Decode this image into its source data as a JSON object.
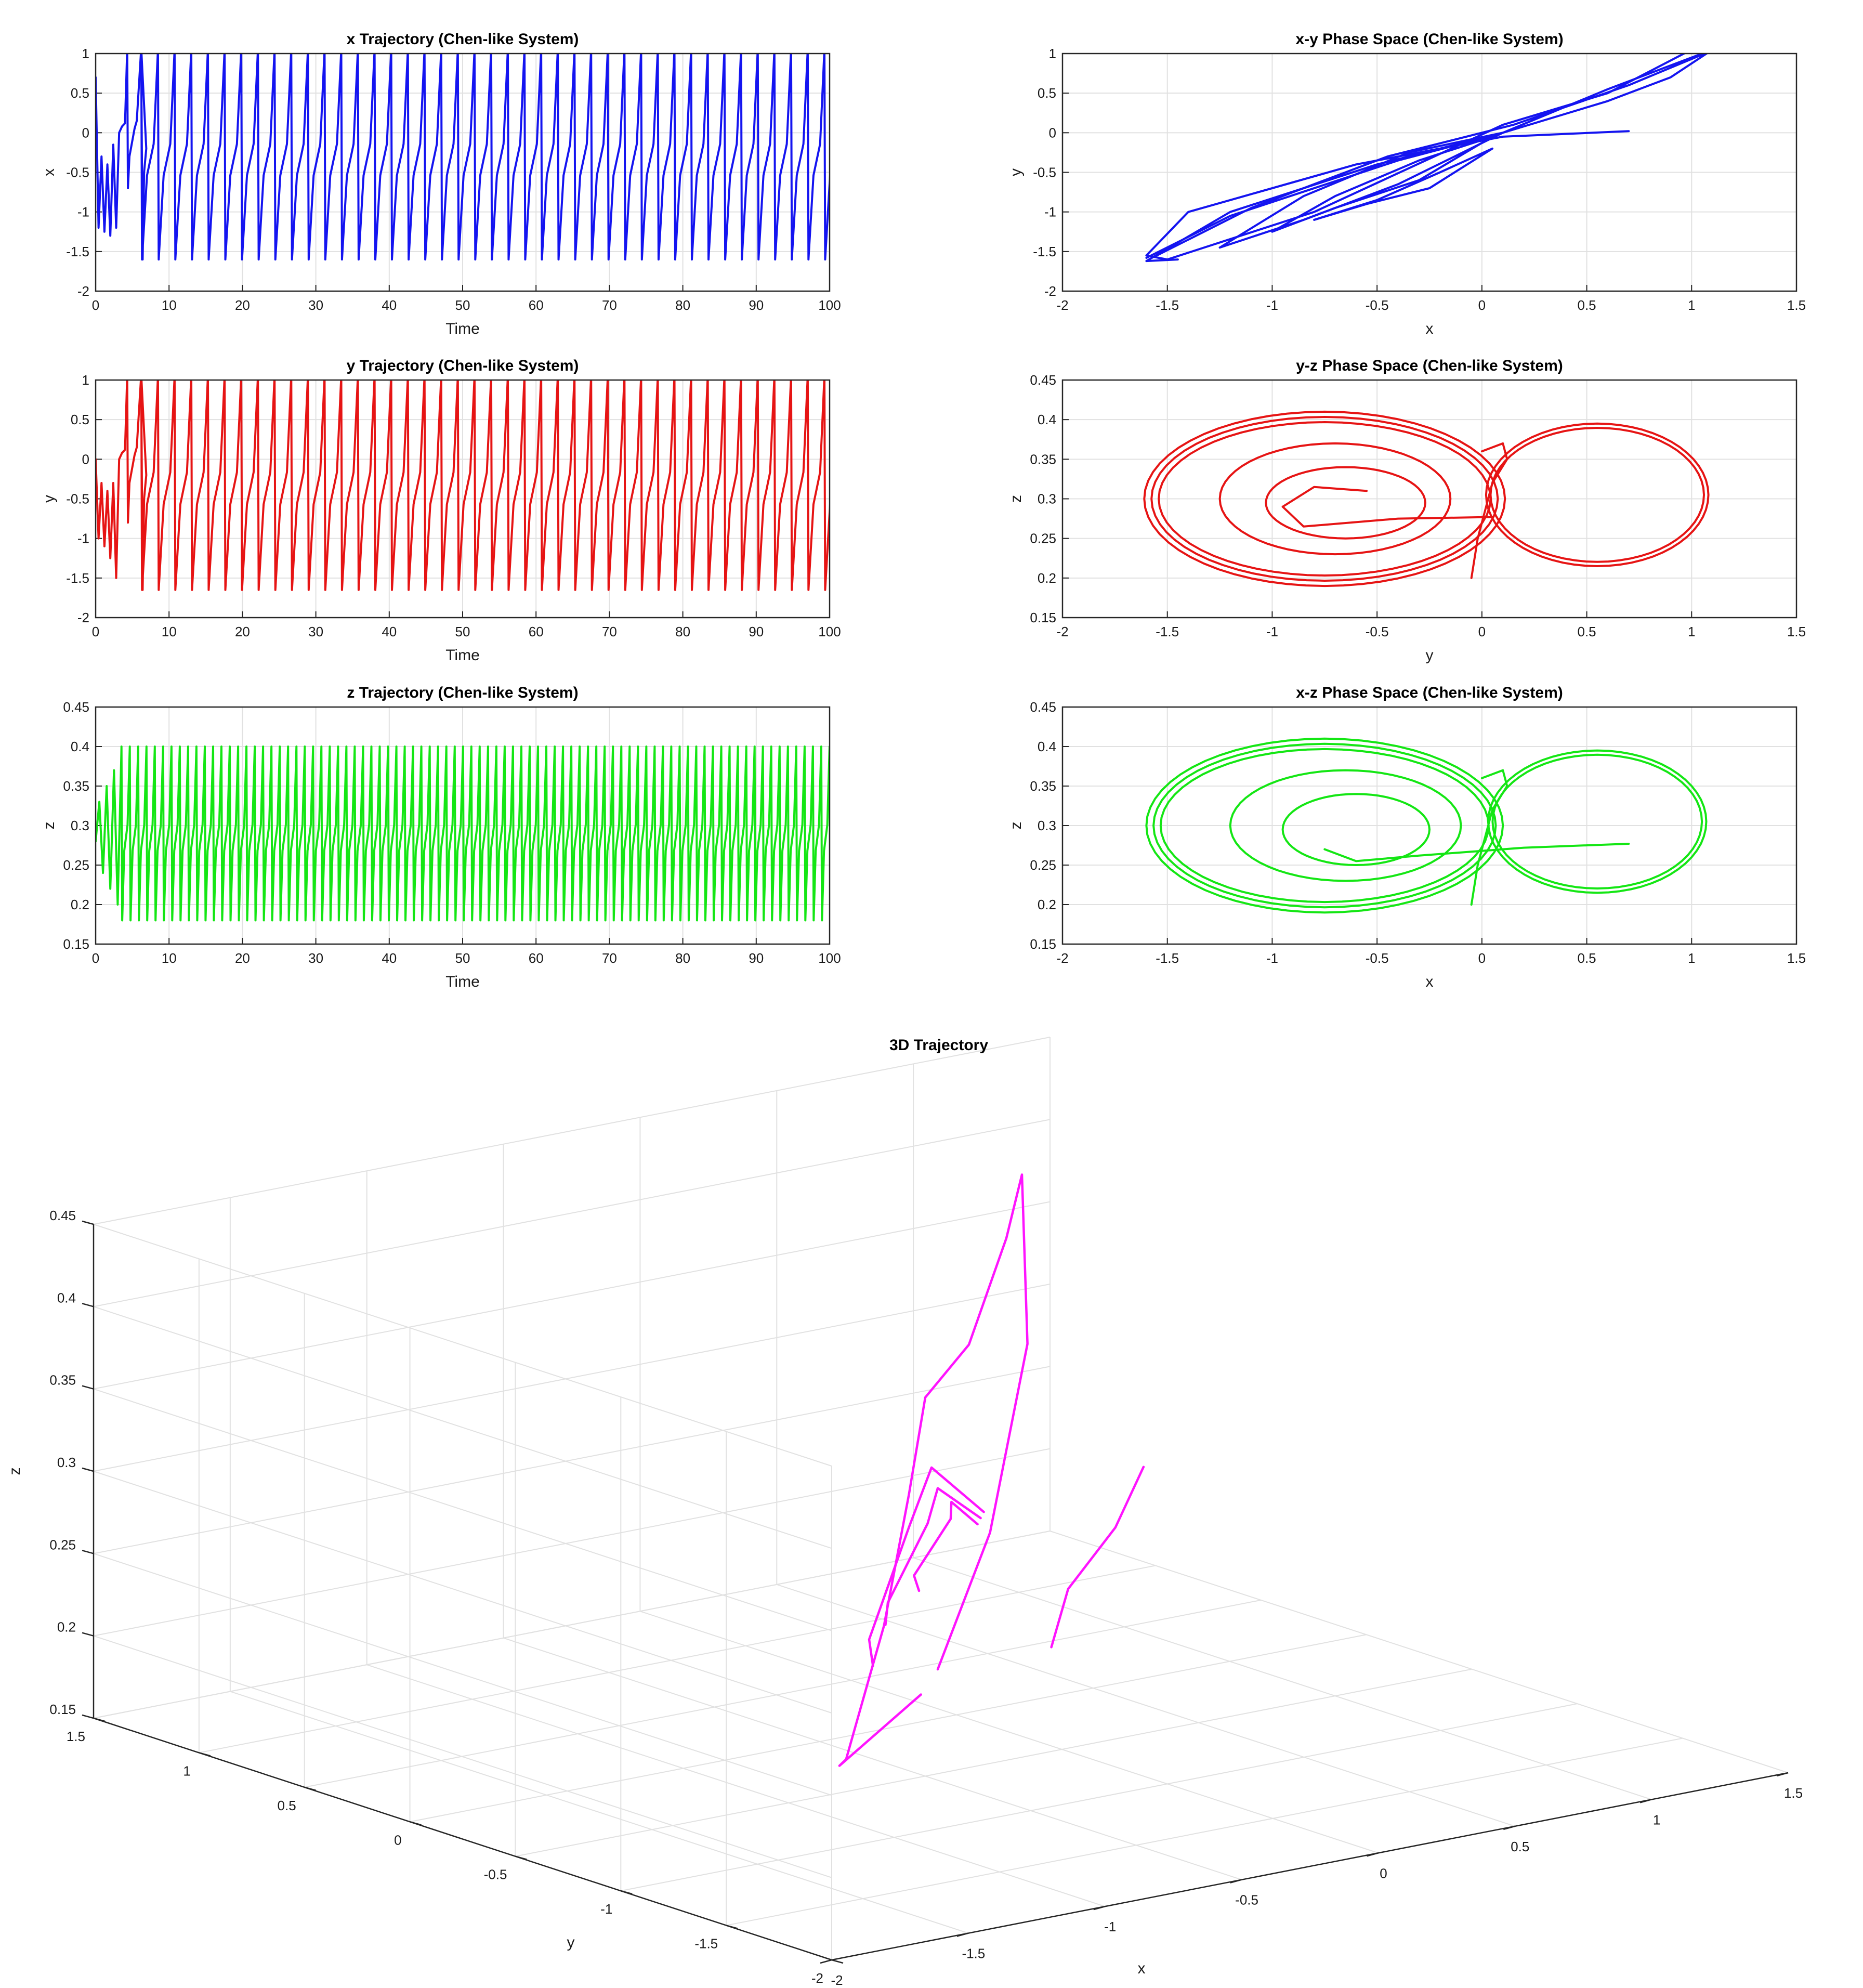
{
  "chart_data": [
    {
      "id": "x-trajectory",
      "type": "line",
      "title": "x Trajectory (Chen-like System)",
      "xlabel": "Time",
      "ylabel": "x",
      "xlim": [
        0,
        100
      ],
      "ylim": [
        -2,
        1
      ],
      "xticks": [
        "0",
        "10",
        "20",
        "30",
        "40",
        "50",
        "60",
        "70",
        "80",
        "90",
        "100"
      ],
      "yticks": [
        "-2",
        "-1.5",
        "-1",
        "-0.5",
        "0",
        "0.5",
        "1"
      ],
      "grid": true,
      "color": "#1414f0",
      "series": [
        {
          "x": [
            0,
            0.4,
            0.8,
            1.2,
            1.6,
            2.0,
            2.4,
            2.8,
            3.2,
            3.6,
            4.0,
            4.3,
            4.4,
            4.6,
            4.9,
            5.3,
            5.6,
            6.2,
            6.4,
            6.6,
            6.9
          ],
          "y": [
            0.7,
            -1.2,
            -0.3,
            -1.25,
            -0.4,
            -1.3,
            -0.15,
            -1.2,
            0.0,
            0.08,
            0.12,
            1.05,
            -0.7,
            -0.3,
            -0.15,
            0.05,
            0.15,
            1.05,
            -1.6,
            -0.5,
            -0.2
          ]
        }
      ],
      "oscillation": {
        "from": 6.2,
        "to": 100,
        "period": 2.27,
        "peak": 1.05,
        "trough": -1.6
      }
    },
    {
      "id": "y-trajectory",
      "type": "line",
      "title": "y Trajectory (Chen-like System)",
      "xlabel": "Time",
      "ylabel": "y",
      "xlim": [
        0,
        100
      ],
      "ylim": [
        -2,
        1
      ],
      "xticks": [
        "0",
        "10",
        "20",
        "30",
        "40",
        "50",
        "60",
        "70",
        "80",
        "90",
        "100"
      ],
      "yticks": [
        "-2",
        "-1.5",
        "-1",
        "-0.5",
        "0",
        "0.5",
        "1"
      ],
      "grid": true,
      "color": "#e61414",
      "series": [
        {
          "x": [
            0,
            0.4,
            0.8,
            1.2,
            1.6,
            2.0,
            2.4,
            2.8,
            3.2,
            3.6,
            4.0,
            4.3,
            4.4,
            4.6,
            4.9,
            5.3,
            5.6,
            6.2,
            6.4,
            6.6,
            6.9
          ],
          "y": [
            0.0,
            -1.0,
            -0.3,
            -1.1,
            -0.4,
            -1.25,
            -0.3,
            -1.5,
            0.0,
            0.08,
            0.12,
            1.05,
            -0.8,
            -0.3,
            -0.15,
            0.05,
            0.15,
            1.05,
            -1.65,
            -0.5,
            -0.2
          ]
        }
      ],
      "oscillation": {
        "from": 6.2,
        "to": 100,
        "period": 2.27,
        "peak": 1.05,
        "trough": -1.65
      }
    },
    {
      "id": "z-trajectory",
      "type": "line",
      "title": "z Trajectory (Chen-like System)",
      "xlabel": "Time",
      "ylabel": "z",
      "xlim": [
        0,
        100
      ],
      "ylim": [
        0.15,
        0.45
      ],
      "xticks": [
        "0",
        "10",
        "20",
        "30",
        "40",
        "50",
        "60",
        "70",
        "80",
        "90",
        "100"
      ],
      "yticks": [
        "0.15",
        "0.2",
        "0.25",
        "0.3",
        "0.35",
        "0.4",
        "0.45"
      ],
      "grid": true,
      "color": "#14e614",
      "series": [
        {
          "x": [
            0,
            0.5,
            1.0,
            1.5,
            2.0,
            2.5,
            3.0,
            3.5
          ],
          "y": [
            0.28,
            0.33,
            0.24,
            0.35,
            0.22,
            0.37,
            0.2,
            0.39
          ]
        }
      ],
      "oscillation": {
        "from": 3.5,
        "to": 100,
        "period": 1.135,
        "peak": 0.4,
        "trough": 0.18
      }
    },
    {
      "id": "xy-phase",
      "type": "line",
      "title": "x-y Phase Space (Chen-like System)",
      "xlabel": "x",
      "ylabel": "y",
      "xlim": [
        -2,
        1.5
      ],
      "ylim": [
        -2,
        1
      ],
      "xticks": [
        "-2",
        "-1.5",
        "-1",
        "-0.5",
        "0",
        "0.5",
        "1",
        "1.5"
      ],
      "yticks": [
        "-2",
        "-1.5",
        "-1",
        "-0.5",
        "0",
        "0.5",
        "1"
      ],
      "grid": true,
      "color": "#1414f0",
      "series": [
        {
          "x": [
            0.7,
            0.1,
            -0.6,
            -1.4,
            -1.6,
            -1.5,
            -0.8,
            0.1,
            0.6,
            1.0,
            1.1,
            0.9,
            0.6,
            0.1,
            -0.5,
            -1.2,
            -1.6,
            -1.45
          ],
          "y": [
            0.02,
            -0.05,
            -0.4,
            -1.0,
            -1.55,
            -1.6,
            -1.0,
            0.1,
            0.5,
            1.05,
            1.05,
            0.7,
            0.4,
            0.0,
            -0.4,
            -1.0,
            -1.62,
            -1.6
          ]
        },
        {
          "x": [
            -1.6,
            -1.2,
            -0.4,
            0.1,
            0.6,
            1.05,
            1.08,
            0.7,
            0.15,
            -0.45,
            -1.1,
            -1.55
          ],
          "y": [
            -1.58,
            -1.05,
            -0.35,
            0.0,
            0.55,
            1.0,
            1.02,
            0.6,
            0.1,
            -0.3,
            -0.95,
            -1.55
          ]
        },
        {
          "x": [
            -1.25,
            -0.85,
            -0.4,
            0.1,
            -0.35,
            -0.85,
            -1.25
          ],
          "y": [
            -1.45,
            -1.1,
            -0.65,
            0.0,
            -0.25,
            -0.8,
            -1.45
          ]
        },
        {
          "x": [
            -1.0,
            -0.7,
            -0.3,
            0.05,
            -0.3,
            -0.7,
            -1.0
          ],
          "y": [
            -1.25,
            -0.95,
            -0.6,
            -0.05,
            -0.35,
            -0.8,
            -1.25
          ]
        },
        {
          "x": [
            -0.8,
            -0.55,
            -0.25,
            0.05,
            -0.2,
            -0.5,
            -0.8
          ],
          "y": [
            -1.1,
            -0.9,
            -0.7,
            -0.2,
            -0.5,
            -0.85,
            -1.1
          ]
        }
      ]
    },
    {
      "id": "yz-phase",
      "type": "line",
      "title": "y-z Phase Space (Chen-like System)",
      "xlabel": "y",
      "ylabel": "z",
      "xlim": [
        -2,
        1.5
      ],
      "ylim": [
        0.15,
        0.45
      ],
      "xticks": [
        "-2",
        "-1.5",
        "-1",
        "-0.5",
        "0",
        "0.5",
        "1",
        "1.5"
      ],
      "yticks": [
        "0.15",
        "0.2",
        "0.25",
        "0.3",
        "0.35",
        "0.4",
        "0.45"
      ],
      "grid": true,
      "color": "#e61414",
      "loops": [
        {
          "cx": -0.75,
          "cy": 0.3,
          "rx": 0.86,
          "ry": 0.11,
          "count": 3,
          "spread": 0.02
        },
        {
          "cx": -0.7,
          "cy": 0.3,
          "rx": 0.55,
          "ry": 0.07,
          "count": 1,
          "spread": 0
        },
        {
          "cx": -0.65,
          "cy": 0.295,
          "rx": 0.38,
          "ry": 0.045,
          "count": 1,
          "spread": 0
        },
        {
          "cx": 0.55,
          "cy": 0.305,
          "rx": 0.53,
          "ry": 0.09,
          "count": 2,
          "spread": 0.02
        }
      ],
      "series": [
        {
          "x": [
            0.05,
            -0.4,
            -0.85,
            -0.95,
            -0.8,
            -0.55
          ],
          "y": [
            0.277,
            0.275,
            0.265,
            0.29,
            0.315,
            0.31
          ]
        },
        {
          "x": [
            -0.05,
            -0.02,
            0.05,
            0.12,
            0.1,
            0.0
          ],
          "y": [
            0.2,
            0.25,
            0.32,
            0.35,
            0.37,
            0.36
          ]
        }
      ]
    },
    {
      "id": "xz-phase",
      "type": "line",
      "title": "x-z Phase Space (Chen-like System)",
      "xlabel": "x",
      "ylabel": "z",
      "xlim": [
        -2,
        1.5
      ],
      "ylim": [
        0.15,
        0.45
      ],
      "xticks": [
        "-2",
        "-1.5",
        "-1",
        "-0.5",
        "0",
        "0.5",
        "1",
        "1.5"
      ],
      "yticks": [
        "0.15",
        "0.2",
        "0.25",
        "0.3",
        "0.35",
        "0.4",
        "0.45"
      ],
      "grid": true,
      "color": "#14e614",
      "loops": [
        {
          "cx": -0.75,
          "cy": 0.3,
          "rx": 0.85,
          "ry": 0.11,
          "count": 3,
          "spread": 0.02
        },
        {
          "cx": -0.65,
          "cy": 0.3,
          "rx": 0.55,
          "ry": 0.07,
          "count": 1,
          "spread": 0
        },
        {
          "cx": -0.6,
          "cy": 0.295,
          "rx": 0.35,
          "ry": 0.045,
          "count": 1,
          "spread": 0
        },
        {
          "cx": 0.55,
          "cy": 0.305,
          "rx": 0.52,
          "ry": 0.09,
          "count": 2,
          "spread": 0.02
        }
      ],
      "series": [
        {
          "x": [
            0.7,
            0.2,
            -0.3,
            -0.6,
            -0.75
          ],
          "y": [
            0.277,
            0.272,
            0.262,
            0.255,
            0.27
          ]
        },
        {
          "x": [
            -0.05,
            -0.02,
            0.05,
            0.12,
            0.1,
            0.0
          ],
          "y": [
            0.2,
            0.25,
            0.32,
            0.35,
            0.37,
            0.36
          ]
        }
      ]
    },
    {
      "id": "trajectory-3d",
      "type": "line",
      "title": "3D Trajectory",
      "xlabel": "x",
      "ylabel": "y",
      "zlabel": "z",
      "xlim": [
        -2,
        1.5
      ],
      "ylim": [
        -2,
        1.5
      ],
      "zlim": [
        0.15,
        0.45
      ],
      "xticks": [
        "-2",
        "-1.5",
        "-1",
        "-0.5",
        "0",
        "0.5",
        "1",
        "1.5"
      ],
      "yticks": [
        "-2",
        "-1.5",
        "-1",
        "-0.5",
        "0",
        "0.5",
        "1",
        "1.5"
      ],
      "zticks": [
        "0.15",
        "0.2",
        "0.25",
        "0.3",
        "0.35",
        "0.4",
        "0.45"
      ],
      "grid": true,
      "color": "#ff14ff",
      "series": [
        {
          "x": [
            0.7,
            0.35,
            0.1,
            0.0
          ],
          "y": [
            0.02,
            -0.3,
            -0.4,
            -0.45
          ],
          "z": [
            0.277,
            0.265,
            0.24,
            0.21
          ]
        },
        {
          "x": [
            -0.4,
            -1.2,
            -1.6,
            -1.5,
            -1.1,
            -0.5,
            0.2,
            0.8,
            1.05,
            0.8,
            0.2,
            -0.3
          ],
          "y": [
            -0.35,
            -1.0,
            -1.55,
            -1.6,
            -1.2,
            -0.5,
            0.2,
            0.8,
            1.05,
            0.7,
            0.1,
            -0.3
          ],
          "z": [
            0.19,
            0.2,
            0.24,
            0.32,
            0.37,
            0.38,
            0.36,
            0.38,
            0.4,
            0.32,
            0.25,
            0.2
          ]
        },
        {
          "x": [
            -1.0,
            -1.4,
            -1.1,
            -0.4,
            0.1
          ],
          "y": [
            -0.9,
            -1.4,
            -1.2,
            -0.4,
            0.0
          ],
          "z": [
            0.25,
            0.3,
            0.35,
            0.33,
            0.27
          ]
        },
        {
          "x": [
            -0.8,
            -1.1,
            -0.8,
            -0.3,
            0.05
          ],
          "y": [
            -0.7,
            -1.1,
            -0.9,
            -0.3,
            -0.05
          ],
          "z": [
            0.26,
            0.3,
            0.33,
            0.31,
            0.27
          ]
        },
        {
          "x": [
            -0.6,
            -0.85,
            -0.6,
            -0.25,
            0.0
          ],
          "y": [
            -0.6,
            -0.9,
            -0.75,
            -0.3,
            -0.1
          ],
          "z": [
            0.27,
            0.3,
            0.32,
            0.3,
            0.27
          ]
        }
      ]
    }
  ]
}
